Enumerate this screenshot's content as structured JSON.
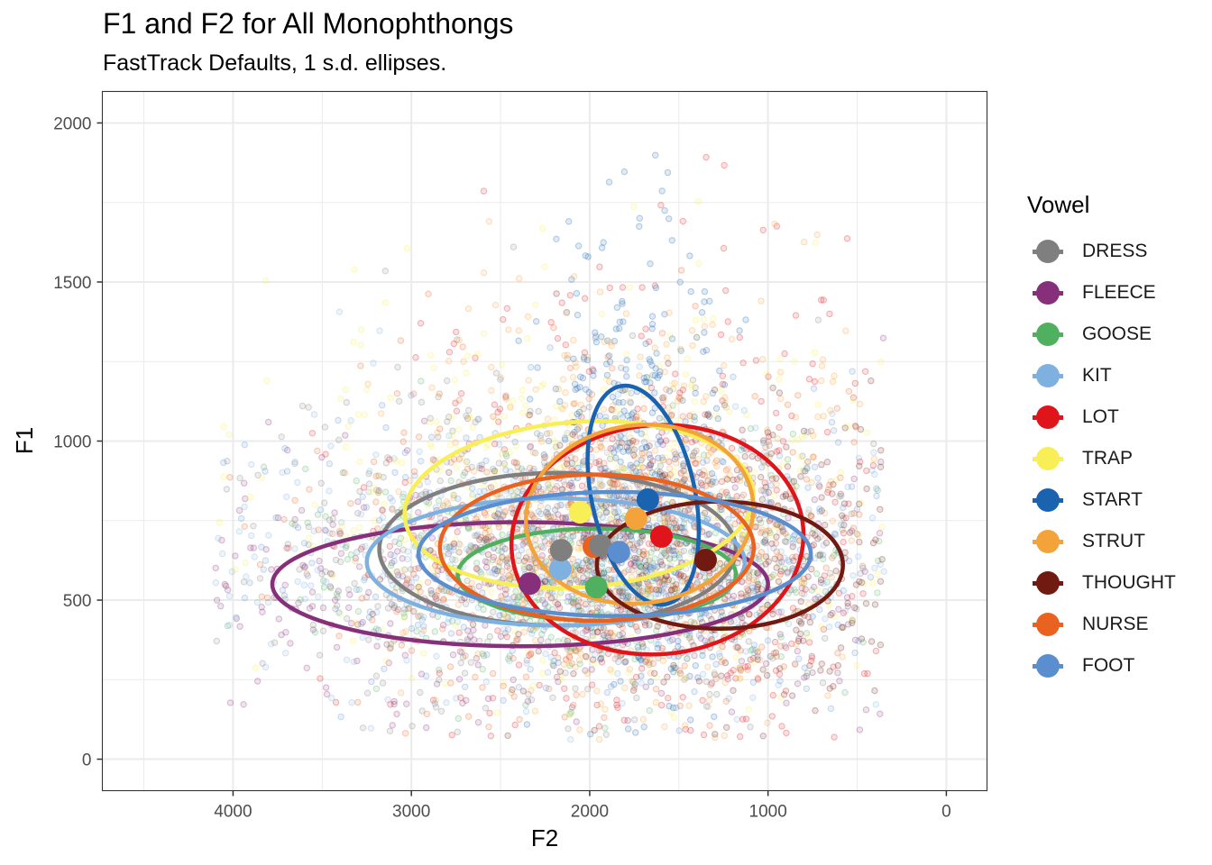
{
  "chart_data": {
    "type": "scatter",
    "title": "F1 and F2 for All Monophthongs",
    "subtitle": "FastTrack Defaults, 1 s.d. ellipses.",
    "xlabel": "F2",
    "ylabel": "F1",
    "xlim": [
      4733,
      -228
    ],
    "ylim": [
      2099,
      -99
    ],
    "x_reversed": true,
    "y_reversed": true,
    "x_ticks": [
      4000,
      3000,
      2000,
      1000,
      0
    ],
    "x_tick_labels": [
      "4000",
      "3000",
      "2000",
      "1000",
      "0"
    ],
    "y_ticks": [
      0,
      500,
      1000,
      1500,
      2000
    ],
    "y_tick_labels": [
      "0",
      "500",
      "1000",
      "1500",
      "2000"
    ],
    "grid": true,
    "legend": {
      "title": "Vowel",
      "position": "right"
    },
    "series": [
      {
        "name": "DRESS",
        "color": "#7f7f7f",
        "mean": [
          2160,
          657
        ],
        "ellipse": {
          "cx": 2180,
          "cy": 660,
          "rx": 1000,
          "ry": 240
        }
      },
      {
        "name": "FLEECE",
        "color": "#86307b",
        "mean": [
          2337,
          552
        ],
        "ellipse": {
          "cx": 2390,
          "cy": 550,
          "rx": 1390,
          "ry": 195
        }
      },
      {
        "name": "GOOSE",
        "color": "#4fb05f",
        "mean": [
          1963,
          541
        ],
        "ellipse": {
          "cx": 1960,
          "cy": 580,
          "rx": 780,
          "ry": 145
        }
      },
      {
        "name": "KIT",
        "color": "#7eb0e0",
        "mean": [
          2165,
          598
        ],
        "ellipse": {
          "cx": 2190,
          "cy": 620,
          "rx": 1060,
          "ry": 200
        }
      },
      {
        "name": "LOT",
        "color": "#e0151b",
        "mean": [
          1598,
          700
        ],
        "ellipse": {
          "cx": 1620,
          "cy": 690,
          "rx": 820,
          "ry": 360
        }
      },
      {
        "name": "TRAP",
        "color": "#f7ef55",
        "mean": [
          2054,
          776
        ],
        "ellipse": {
          "cx": 2060,
          "cy": 800,
          "rx": 980,
          "ry": 260
        }
      },
      {
        "name": "START",
        "color": "#1a63b0",
        "mean": [
          1674,
          816
        ],
        "ellipse": {
          "cx": 1700,
          "cy": 830,
          "rx": 290,
          "ry": 350
        }
      },
      {
        "name": "STRUT",
        "color": "#f4a33a",
        "mean": [
          1740,
          756
        ],
        "ellipse": {
          "cx": 1720,
          "cy": 770,
          "rx": 640,
          "ry": 280
        }
      },
      {
        "name": "THOUGHT",
        "color": "#711a12",
        "mean": [
          1350,
          626
        ],
        "ellipse": {
          "cx": 1270,
          "cy": 610,
          "rx": 690,
          "ry": 200
        }
      },
      {
        "name": "NURSE",
        "color": "#ea6220",
        "mean": [
          1977,
          668
        ],
        "ellipse": {
          "cx": 1960,
          "cy": 665,
          "rx": 880,
          "ry": 230
        }
      },
      {
        "name": "FOOT",
        "color": "#5a8ecf",
        "mean": [
          1836,
          651
        ],
        "ellipse": {
          "cx": 1860,
          "cy": 645,
          "rx": 1100,
          "ry": 195
        }
      }
    ],
    "extra_mean": {
      "name": "DRESS",
      "color": "#7f7f7f",
      "mean": [
        1940,
        672
      ]
    },
    "ellipse_rotation_deg": {
      "START": -12,
      "STRUT": -8,
      "TRAP": -4,
      "LOT": -5,
      "DRESS": 0,
      "THOUGHT": 0
    },
    "point_cloud": {
      "description_free": true,
      "count": 5000,
      "f2_mean": 2000,
      "f2_sd": 600,
      "f1_mean": 720,
      "f1_sd": 250,
      "alpha": 0.22
    }
  }
}
